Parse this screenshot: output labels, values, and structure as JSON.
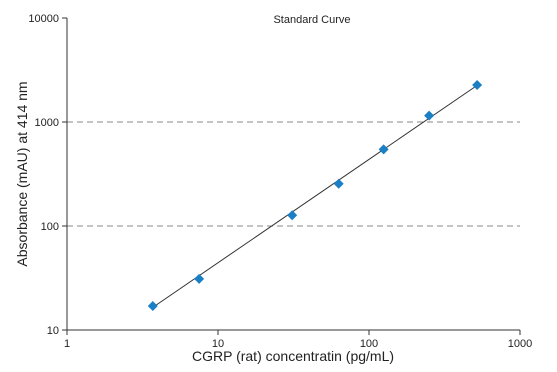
{
  "chart_data": {
    "type": "scatter",
    "title": "Standard Curve",
    "xlabel": "CGRP (rat) concentratin (pg/mL)",
    "ylabel": "Absorbance (mAU) at 414 nm",
    "x_scale": "log",
    "y_scale": "log",
    "xlim": [
      1,
      1000
    ],
    "ylim": [
      10,
      10000
    ],
    "x_ticks": [
      1,
      10,
      100,
      1000
    ],
    "x_tick_labels": [
      "1",
      "10",
      "100",
      "1000"
    ],
    "y_ticks": [
      10,
      100,
      1000,
      10000
    ],
    "y_tick_labels": [
      "10",
      "100",
      "1000",
      "10000"
    ],
    "y_gridlines": [
      100,
      1000
    ],
    "grid_style": "dashed",
    "series": [
      {
        "marker": "diamond",
        "color": "#1a7fc4",
        "x": [
          3.7,
          7.5,
          31,
          63,
          125,
          250,
          520
        ],
        "y": [
          17,
          31,
          127,
          255,
          545,
          1150,
          2270
        ]
      }
    ],
    "fit_line": {
      "x": [
        3.7,
        520
      ],
      "y": [
        16.5,
        2250
      ],
      "color": "#333333"
    }
  }
}
